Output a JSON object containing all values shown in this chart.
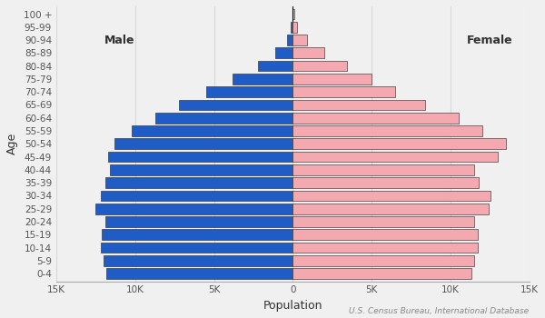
{
  "age_groups": [
    "0-4",
    "5-9",
    "10-14",
    "15-19",
    "20-24",
    "25-29",
    "30-34",
    "35-39",
    "40-44",
    "45-49",
    "50-54",
    "55-59",
    "60-64",
    "65-69",
    "70-74",
    "75-79",
    "80-84",
    "85-89",
    "90-94",
    "95-99",
    "100 +"
  ],
  "male": [
    11800,
    12000,
    12200,
    12100,
    11900,
    12500,
    12200,
    11900,
    11600,
    11700,
    11300,
    10200,
    8700,
    7200,
    5500,
    3800,
    2200,
    1100,
    400,
    120,
    30
  ],
  "female": [
    11300,
    11500,
    11700,
    11700,
    11500,
    12400,
    12500,
    11800,
    11500,
    13000,
    13500,
    12000,
    10500,
    8400,
    6500,
    5000,
    3400,
    2000,
    900,
    280,
    80
  ],
  "male_color": "#1f5cc5",
  "female_color": "#f4a8b0",
  "bar_edgecolor": "#222222",
  "bar_edgewidth": 0.4,
  "background_color": "#f0f0f0",
  "xlabel": "Population",
  "ylabel": "Age",
  "male_label": "Male",
  "female_label": "Female",
  "xlim": 15000,
  "xtick_vals": [
    -15000,
    -10000,
    -5000,
    0,
    5000,
    10000,
    15000
  ],
  "xtick_labels": [
    "15K",
    "10K",
    "5K",
    "0",
    "5K",
    "10K",
    "15K"
  ],
  "source_text": "U.S. Census Bureau, International Database",
  "grid_color": "#d8d8d8",
  "label_fontsize": 9,
  "tick_fontsize": 7.5,
  "axis_label_fontsize": 9,
  "source_fontsize": 6.5
}
